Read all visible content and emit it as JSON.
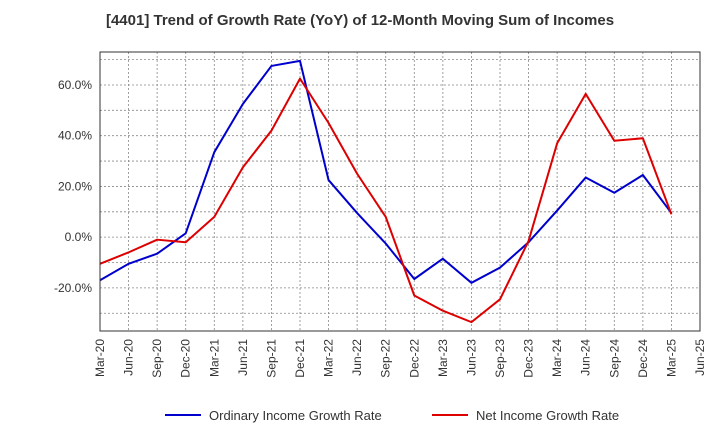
{
  "chart_data": {
    "type": "line",
    "title": "[4401]  Trend of Growth Rate (YoY) of 12-Month Moving Sum of Incomes",
    "xlabel": "",
    "ylabel": "",
    "x": [
      "Mar-20",
      "Jun-20",
      "Sep-20",
      "Dec-20",
      "Mar-21",
      "Jun-21",
      "Sep-21",
      "Dec-21",
      "Mar-22",
      "Jun-22",
      "Sep-22",
      "Dec-22",
      "Mar-23",
      "Jun-23",
      "Sep-23",
      "Dec-23",
      "Mar-24",
      "Jun-24",
      "Sep-24",
      "Dec-24",
      "Mar-25",
      "Jun-25"
    ],
    "ylim": [
      -37,
      73
    ],
    "yticks": [
      60,
      40,
      20,
      0,
      -20
    ],
    "ytick_labels": [
      "60.0%",
      "40.0%",
      "20.0%",
      "0.0%",
      "-20.0%"
    ],
    "grid": true,
    "legend_position": "bottom",
    "series": [
      {
        "name": "Ordinary Income Growth Rate",
        "color": "#0000cc",
        "values": [
          -17,
          -10.5,
          -6.5,
          1.5,
          33.5,
          52.5,
          67.5,
          69.5,
          22.5,
          9.5,
          -2.5,
          -16.5,
          -8.5,
          -18,
          -12,
          -2,
          10.5,
          23.5,
          17.5,
          24.5,
          9.5,
          null
        ]
      },
      {
        "name": "Net Income Growth Rate",
        "color": "#dd0000",
        "values": [
          -10.5,
          -6,
          -1,
          -2,
          8,
          27.5,
          42,
          62.5,
          45,
          25,
          8,
          -23,
          -29,
          -33.5,
          -24.5,
          -1.5,
          37,
          56.5,
          38,
          39,
          9,
          null
        ]
      }
    ]
  }
}
